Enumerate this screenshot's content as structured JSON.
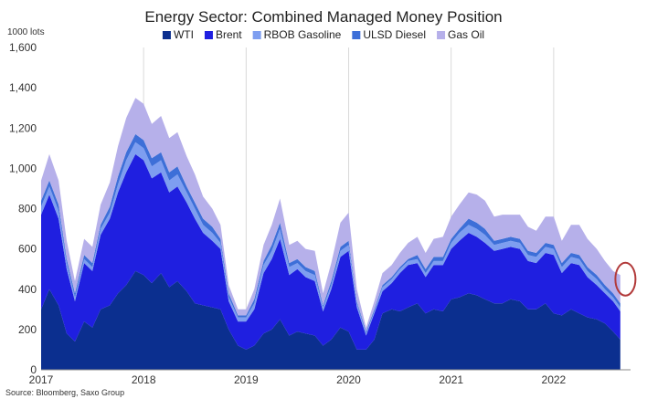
{
  "chart_data": {
    "type": "area",
    "stacked": true,
    "title": "Energy Sector: Combined Managed Money Position",
    "ylabel": "1000 lots",
    "xlabel": "",
    "ylim": [
      0,
      1600
    ],
    "yticks": [
      0,
      200,
      400,
      600,
      800,
      1000,
      1200,
      1400,
      1600
    ],
    "ytick_labels": [
      "0",
      "200",
      "400",
      "600",
      "800",
      "1,000",
      "1,200",
      "1,400",
      "1,600"
    ],
    "xlim": [
      2017.0,
      2022.75
    ],
    "xticks": [
      2017,
      2018,
      2019,
      2020,
      2021,
      2022
    ],
    "xtick_labels": [
      "2017",
      "2018",
      "2019",
      "2020",
      "2021",
      "2022"
    ],
    "grid": "vertical",
    "legend_position": "top",
    "source": "Source: Bloomberg, Saxo Group",
    "x": [
      2017.0,
      2017.08,
      2017.17,
      2017.25,
      2017.33,
      2017.42,
      2017.5,
      2017.58,
      2017.67,
      2017.75,
      2017.83,
      2017.92,
      2018.0,
      2018.08,
      2018.17,
      2018.25,
      2018.33,
      2018.42,
      2018.5,
      2018.58,
      2018.67,
      2018.75,
      2018.83,
      2018.92,
      2019.0,
      2019.08,
      2019.17,
      2019.25,
      2019.33,
      2019.42,
      2019.5,
      2019.58,
      2019.67,
      2019.75,
      2019.83,
      2019.92,
      2020.0,
      2020.08,
      2020.17,
      2020.25,
      2020.33,
      2020.42,
      2020.5,
      2020.58,
      2020.67,
      2020.75,
      2020.83,
      2020.92,
      2021.0,
      2021.08,
      2021.17,
      2021.25,
      2021.33,
      2021.42,
      2021.5,
      2021.58,
      2021.67,
      2021.75,
      2021.83,
      2021.92,
      2022.0,
      2022.08,
      2022.17,
      2022.25,
      2022.33,
      2022.42,
      2022.5,
      2022.58,
      2022.65
    ],
    "series": [
      {
        "name": "WTI",
        "color": "#0b2f8f",
        "values": [
          300,
          400,
          320,
          180,
          140,
          240,
          210,
          300,
          320,
          380,
          420,
          490,
          470,
          430,
          480,
          410,
          440,
          390,
          330,
          320,
          310,
          300,
          200,
          120,
          100,
          120,
          180,
          200,
          250,
          170,
          190,
          180,
          170,
          120,
          150,
          210,
          190,
          100,
          100,
          150,
          280,
          300,
          290,
          310,
          330,
          280,
          300,
          290,
          350,
          360,
          380,
          370,
          350,
          330,
          330,
          350,
          340,
          300,
          300,
          330,
          280,
          270,
          300,
          280,
          260,
          250,
          230,
          190,
          150
        ]
      },
      {
        "name": "Brent",
        "color": "#1f1fe0",
        "values": [
          470,
          470,
          430,
          320,
          200,
          290,
          280,
          370,
          430,
          500,
          560,
          580,
          570,
          520,
          500,
          470,
          470,
          440,
          420,
          360,
          330,
          300,
          140,
          120,
          140,
          180,
          300,
          350,
          400,
          300,
          310,
          280,
          270,
          170,
          250,
          350,
          400,
          210,
          70,
          130,
          110,
          130,
          190,
          210,
          200,
          180,
          220,
          230,
          250,
          280,
          300,
          290,
          280,
          260,
          270,
          260,
          260,
          240,
          230,
          250,
          290,
          210,
          230,
          240,
          200,
          170,
          150,
          150,
          140
        ]
      },
      {
        "name": "RBOB Gasoline",
        "color": "#7e9ef0",
        "values": [
          40,
          40,
          40,
          30,
          20,
          20,
          20,
          30,
          30,
          40,
          60,
          60,
          60,
          60,
          60,
          60,
          60,
          50,
          50,
          40,
          40,
          30,
          20,
          20,
          20,
          30,
          40,
          40,
          50,
          40,
          30,
          30,
          30,
          20,
          20,
          30,
          30,
          20,
          10,
          10,
          20,
          20,
          20,
          20,
          20,
          20,
          20,
          20,
          30,
          40,
          40,
          40,
          40,
          30,
          30,
          30,
          30,
          30,
          30,
          30,
          30,
          30,
          30,
          30,
          30,
          30,
          20,
          20,
          20
        ]
      },
      {
        "name": "ULSD Diesel",
        "color": "#3d6fd8",
        "values": [
          30,
          30,
          30,
          20,
          20,
          20,
          20,
          20,
          30,
          40,
          40,
          40,
          40,
          40,
          40,
          40,
          40,
          30,
          30,
          30,
          30,
          20,
          20,
          10,
          10,
          20,
          20,
          30,
          30,
          20,
          20,
          20,
          20,
          10,
          20,
          20,
          20,
          10,
          10,
          10,
          10,
          10,
          10,
          10,
          20,
          20,
          20,
          20,
          20,
          20,
          30,
          30,
          30,
          20,
          20,
          20,
          20,
          20,
          20,
          20,
          20,
          20,
          20,
          20,
          20,
          20,
          20,
          20,
          20
        ]
      },
      {
        "name": "Gas Oil",
        "color": "#b6b0ea",
        "values": [
          100,
          130,
          120,
          90,
          60,
          80,
          80,
          100,
          120,
          150,
          170,
          180,
          180,
          170,
          180,
          170,
          170,
          150,
          140,
          110,
          90,
          70,
          40,
          30,
          30,
          50,
          80,
          100,
          120,
          90,
          90,
          90,
          100,
          60,
          90,
          120,
          140,
          60,
          20,
          40,
          60,
          60,
          70,
          80,
          90,
          80,
          90,
          100,
          110,
          120,
          130,
          140,
          140,
          120,
          120,
          110,
          120,
          120,
          110,
          130,
          140,
          110,
          140,
          150,
          140,
          130,
          120,
          110,
          140
        ]
      }
    ],
    "annotation": {
      "type": "circle",
      "color": "#b23a3a",
      "x": 2022.7,
      "y": 450
    }
  }
}
